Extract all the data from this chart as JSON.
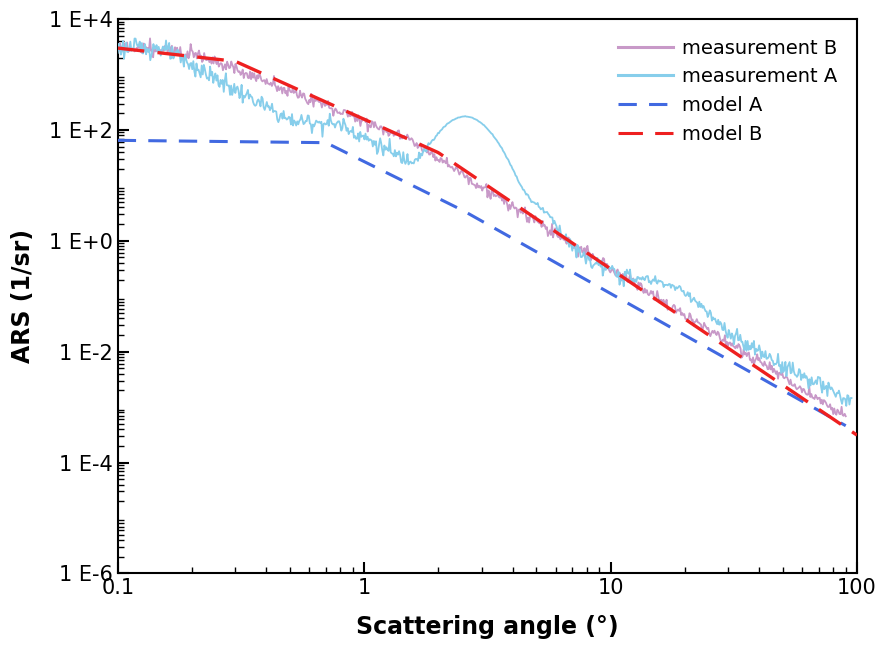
{
  "title": "",
  "xlabel": "Scattering angle (°)",
  "ylabel": "ARS (1/sr)",
  "xlim": [
    0.1,
    100
  ],
  "ylim": [
    1e-06,
    10000.0
  ],
  "legend_entries": [
    "measurement A",
    "model A",
    "measurement B",
    "model B"
  ],
  "colors": {
    "meas_A": "#87CEEB",
    "model_A": "#4169E1",
    "meas_B": "#C899C8",
    "model_B": "#EE2020"
  },
  "xlabel_fontsize": 17,
  "ylabel_fontsize": 17,
  "legend_fontsize": 14,
  "tick_fontsize": 15,
  "ytick_labels": [
    "1 E-6",
    "1 E-4",
    "1 E-2",
    "1 E+0",
    "1 E+2",
    "1 E+4"
  ],
  "ytick_values": [
    1e-06,
    0.0001,
    0.01,
    1.0,
    100.0,
    10000.0
  ],
  "xtick_labels": [
    "0.1",
    "1",
    "10",
    "100"
  ],
  "xtick_values": [
    0.1,
    1,
    10,
    100
  ]
}
